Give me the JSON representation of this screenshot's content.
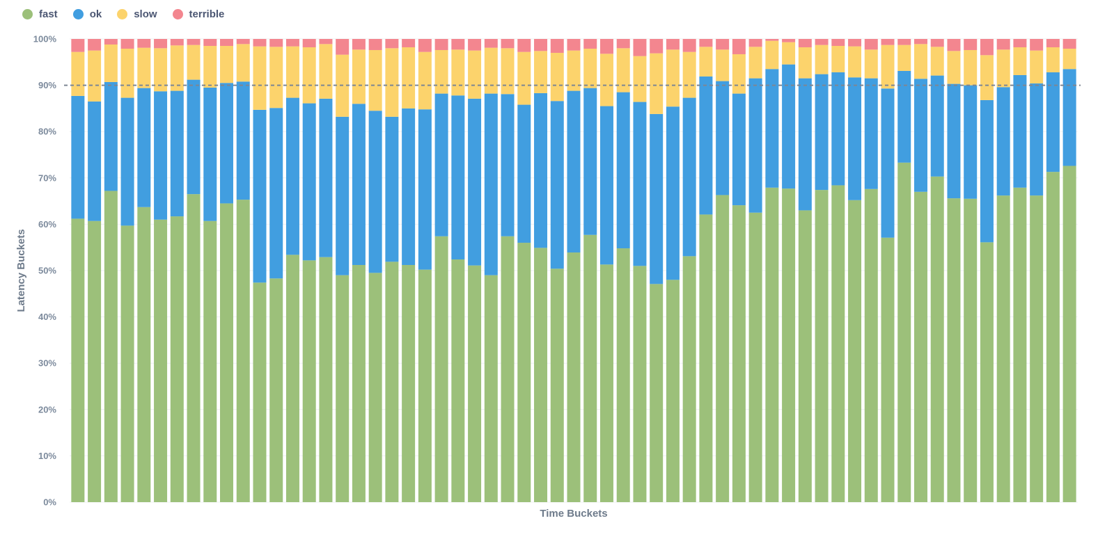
{
  "colors": {
    "fast": "#9cc07a",
    "ok": "#419ee0",
    "slow": "#fcd36c",
    "terrible": "#f3868f",
    "goal_line": "#7d8694",
    "gridline": "#eef0f2",
    "tick_text": "#7c8a9c"
  },
  "legend": {
    "items": [
      {
        "label": "fast",
        "color": "#9cc07a"
      },
      {
        "label": "ok",
        "color": "#419ee0"
      },
      {
        "label": "slow",
        "color": "#fcd36c"
      },
      {
        "label": "terrible",
        "color": "#f3868f"
      }
    ]
  },
  "chart_data": {
    "type": "bar",
    "stacked": true,
    "normalized": true,
    "xlabel": "Time Buckets",
    "ylabel": "Latency Buckets",
    "ylim": [
      0,
      1
    ],
    "y_ticks": [
      "0%",
      "10%",
      "20%",
      "30%",
      "40%",
      "50%",
      "60%",
      "70%",
      "80%",
      "90%",
      "100%"
    ],
    "goal_line": 0.9,
    "grid": true,
    "legend_position": "top-left",
    "series": [
      {
        "name": "fast",
        "values": [
          0.612,
          0.607,
          0.672,
          0.597,
          0.637,
          0.61,
          0.617,
          0.665,
          0.607,
          0.645,
          0.653,
          0.474,
          0.483,
          0.534,
          0.522,
          0.529,
          0.49,
          0.512,
          0.495,
          0.519,
          0.512,
          0.502,
          0.574,
          0.524,
          0.511,
          0.49,
          0.574,
          0.56,
          0.549,
          0.504,
          0.539,
          0.577,
          0.513,
          0.548,
          0.51,
          0.471,
          0.48,
          0.531,
          0.621,
          0.663,
          0.641,
          0.625,
          0.679,
          0.677,
          0.63,
          0.674,
          0.684,
          0.652,
          0.676,
          0.571,
          0.733,
          0.67,
          0.703,
          0.656,
          0.655,
          0.561,
          0.662,
          0.679,
          0.662,
          0.713,
          0.726
        ]
      },
      {
        "name": "ok",
        "values": [
          0.265,
          0.258,
          0.235,
          0.276,
          0.257,
          0.277,
          0.271,
          0.247,
          0.288,
          0.26,
          0.255,
          0.373,
          0.368,
          0.339,
          0.339,
          0.342,
          0.342,
          0.348,
          0.35,
          0.313,
          0.338,
          0.346,
          0.308,
          0.354,
          0.36,
          0.392,
          0.307,
          0.298,
          0.334,
          0.362,
          0.349,
          0.317,
          0.342,
          0.337,
          0.354,
          0.367,
          0.374,
          0.342,
          0.298,
          0.246,
          0.241,
          0.29,
          0.256,
          0.268,
          0.285,
          0.25,
          0.244,
          0.265,
          0.239,
          0.322,
          0.198,
          0.244,
          0.218,
          0.247,
          0.245,
          0.307,
          0.234,
          0.243,
          0.242,
          0.215,
          0.209
        ]
      },
      {
        "name": "slow",
        "values": [
          0.095,
          0.11,
          0.081,
          0.106,
          0.087,
          0.093,
          0.098,
          0.075,
          0.09,
          0.08,
          0.081,
          0.137,
          0.132,
          0.111,
          0.121,
          0.118,
          0.134,
          0.117,
          0.131,
          0.148,
          0.132,
          0.124,
          0.094,
          0.099,
          0.104,
          0.099,
          0.099,
          0.114,
          0.091,
          0.104,
          0.087,
          0.085,
          0.113,
          0.095,
          0.099,
          0.131,
          0.123,
          0.099,
          0.064,
          0.068,
          0.085,
          0.068,
          0.061,
          0.048,
          0.067,
          0.063,
          0.057,
          0.067,
          0.062,
          0.094,
          0.056,
          0.075,
          0.062,
          0.071,
          0.076,
          0.097,
          0.081,
          0.06,
          0.071,
          0.054,
          0.044
        ]
      },
      {
        "name": "terrible",
        "values": [
          0.028,
          0.025,
          0.012,
          0.021,
          0.019,
          0.02,
          0.014,
          0.013,
          0.015,
          0.015,
          0.011,
          0.016,
          0.017,
          0.016,
          0.018,
          0.011,
          0.034,
          0.023,
          0.024,
          0.02,
          0.018,
          0.028,
          0.024,
          0.023,
          0.025,
          0.019,
          0.02,
          0.028,
          0.026,
          0.03,
          0.025,
          0.021,
          0.032,
          0.02,
          0.037,
          0.031,
          0.023,
          0.028,
          0.017,
          0.023,
          0.033,
          0.017,
          0.004,
          0.007,
          0.018,
          0.013,
          0.015,
          0.016,
          0.023,
          0.013,
          0.013,
          0.011,
          0.017,
          0.026,
          0.024,
          0.035,
          0.023,
          0.018,
          0.025,
          0.018,
          0.021
        ]
      }
    ]
  }
}
